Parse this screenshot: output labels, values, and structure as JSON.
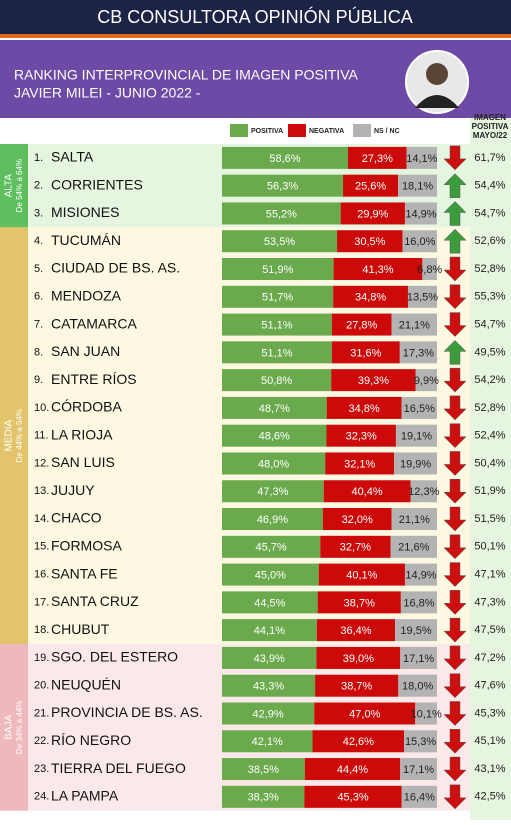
{
  "chart_data": {
    "type": "bar",
    "orientation": "horizontal",
    "stacked": true,
    "brand": "CB CONSULTORA OPINIÓN PÚBLICA",
    "title": "RANKING INTERPROVINCIAL DE IMAGEN POSITIVA",
    "subtitle": "JAVIER MILEI - JUNIO 2022 -",
    "xlim": [
      0,
      100
    ],
    "ranks": [
      "1.",
      "2.",
      "3.",
      "4.",
      "5.",
      "6.",
      "7.",
      "8.",
      "9.",
      "10.",
      "11.",
      "12.",
      "13.",
      "14.",
      "15.",
      "16.",
      "17.",
      "18.",
      "19.",
      "20.",
      "21.",
      "22.",
      "23.",
      "24."
    ],
    "categories": [
      "SALTA",
      "CORRIENTES",
      "MISIONES",
      "TUCUMÁN",
      "CIUDAD DE BS. AS.",
      "MENDOZA",
      "CATAMARCA",
      "SAN JUAN",
      "ENTRE RÍOS",
      "CÓRDOBA",
      "LA RIOJA",
      "SAN LUIS",
      "JUJUY",
      "CHACO",
      "FORMOSA",
      "SANTA FE",
      "SANTA CRUZ",
      "CHUBUT",
      "SGO. DEL ESTERO",
      "NEUQUÉN",
      "PROVINCIA DE BS. AS.",
      "RÍO NEGRO",
      "TIERRA DEL FUEGO",
      "LA PAMPA"
    ],
    "series": [
      {
        "name": "POSITIVA",
        "color": "#6aaa4c",
        "values": [
          58.6,
          56.3,
          55.2,
          53.5,
          51.9,
          51.7,
          51.1,
          51.1,
          50.8,
          48.7,
          48.6,
          48.0,
          47.3,
          46.9,
          45.7,
          45.0,
          44.5,
          44.1,
          43.9,
          43.3,
          42.9,
          42.1,
          38.5,
          38.3
        ],
        "value_labels": [
          "58,6%",
          "56,3%",
          "55,2%",
          "53,5%",
          "51,9%",
          "51,7%",
          "51,1%",
          "51,1%",
          "50,8%",
          "48,7%",
          "48,6%",
          "48,0%",
          "47,3%",
          "46,9%",
          "45,7%",
          "45,0%",
          "44,5%",
          "44,1%",
          "43,9%",
          "43,3%",
          "42,9%",
          "42,1%",
          "38,5%",
          "38,3%"
        ]
      },
      {
        "name": "NEGATIVA",
        "color": "#cc0a0a",
        "values": [
          27.3,
          25.6,
          29.9,
          30.5,
          41.3,
          34.8,
          27.8,
          31.6,
          39.3,
          34.8,
          32.3,
          32.1,
          40.4,
          32.0,
          32.7,
          40.1,
          38.7,
          36.4,
          39.0,
          38.7,
          47.0,
          42.6,
          44.4,
          45.3
        ],
        "value_labels": [
          "27,3%",
          "25,6%",
          "29,9%",
          "30,5%",
          "41,3%",
          "34,8%",
          "27,8%",
          "31,6%",
          "39,3%",
          "34,8%",
          "32,3%",
          "32,1%",
          "40,4%",
          "32,0%",
          "32,7%",
          "40,1%",
          "38,7%",
          "36,4%",
          "39,0%",
          "38,7%",
          "47,0%",
          "42,6%",
          "44,4%",
          "45,3%"
        ]
      },
      {
        "name": "NS / NC",
        "color": "#b3b3b3",
        "values": [
          14.1,
          18.1,
          14.9,
          16.0,
          6.8,
          13.5,
          21.1,
          17.3,
          9.9,
          16.5,
          19.1,
          19.9,
          12.3,
          21.1,
          21.6,
          14.9,
          16.8,
          19.5,
          17.1,
          18.0,
          10.1,
          15.3,
          17.1,
          16.4
        ],
        "value_labels": [
          "14,1%",
          "18,1%",
          "14,9%",
          "16,0%",
          "6,8%",
          "13,5%",
          "21,1%",
          "17,3%",
          "9,9%",
          "16,5%",
          "19,1%",
          "19,9%",
          "12,3%",
          "21,1%",
          "21,6%",
          "14,9%",
          "16,8%",
          "19,5%",
          "17,1%",
          "18,0%",
          "10,1%",
          "15,3%",
          "17,1%",
          "16,4%"
        ]
      }
    ],
    "previous": {
      "name_lines": [
        "IMAGEN",
        "POSITIVA",
        "MAYO/22"
      ],
      "values": [
        61.7,
        54.4,
        54.7,
        52.6,
        52.8,
        55.3,
        54.7,
        49.5,
        54.2,
        52.8,
        52.4,
        50.4,
        51.9,
        51.5,
        50.1,
        47.1,
        47.3,
        47.5,
        47.2,
        47.6,
        45.3,
        45.1,
        43.1,
        42.5
      ],
      "value_labels": [
        "61,7%",
        "54,4%",
        "54,7%",
        "52,6%",
        "52,8%",
        "55,3%",
        "54,7%",
        "49,5%",
        "54,2%",
        "52,8%",
        "52,4%",
        "50,4%",
        "51,9%",
        "51,5%",
        "50,1%",
        "47,1%",
        "47,3%",
        "47,5%",
        "47,2%",
        "47,6%",
        "45,3%",
        "45,1%",
        "43,1%",
        "42,5%"
      ]
    },
    "trend": [
      "down",
      "up",
      "up",
      "up",
      "down",
      "down",
      "down",
      "up",
      "down",
      "down",
      "down",
      "down",
      "down",
      "down",
      "down",
      "down",
      "down",
      "down",
      "down",
      "down",
      "down",
      "down",
      "down",
      "down"
    ],
    "trend_colors": {
      "up": "#3c9b3c",
      "down": "#cc1010"
    },
    "row_group": [
      "alta",
      "alta",
      "alta",
      "media",
      "media",
      "media",
      "media",
      "media",
      "media",
      "media",
      "media",
      "media",
      "media",
      "media",
      "media",
      "media",
      "media",
      "media",
      "baja",
      "baja",
      "baja",
      "baja",
      "baja",
      "baja"
    ],
    "groups": {
      "alta": {
        "name": "ALTA",
        "range": "De 54% a 64%",
        "color": "#5fbf5f",
        "row_color": "#e5f5e0"
      },
      "media": {
        "name": "MEDIA",
        "range": "De 44% a 54%",
        "color": "#e3c46a",
        "row_color": "#fdf8e2"
      },
      "baja": {
        "name": "BAJA",
        "range": "De 34% a 44%",
        "color": "#eeb8bc",
        "row_color": "#fbe9ea"
      }
    }
  }
}
